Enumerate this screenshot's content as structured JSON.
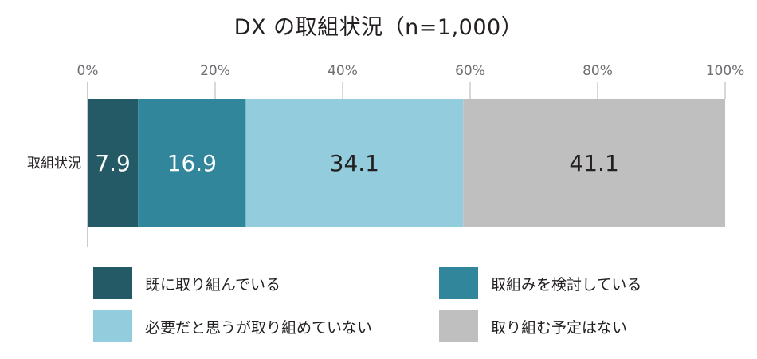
{
  "chart_data": {
    "type": "bar",
    "orientation": "horizontal",
    "stacked": true,
    "title": "DX の取組状況（n=1,000）",
    "categories": [
      "取組状況"
    ],
    "xlim": [
      0,
      100
    ],
    "x_ticks": [
      "0%",
      "20%",
      "40%",
      "60%",
      "80%",
      "100%"
    ],
    "grid": true,
    "legend_position": "bottom",
    "series": [
      {
        "name": "既に取り組んでいる",
        "values": [
          7.9
        ],
        "color": "#245a66",
        "label_color": "#ffffff"
      },
      {
        "name": "取組みを検討している",
        "values": [
          16.9
        ],
        "color": "#31869b",
        "label_color": "#ffffff"
      },
      {
        "name": "必要だと思うが取り組めていない",
        "values": [
          34.1
        ],
        "color": "#93cddd",
        "label_color": "#231f20"
      },
      {
        "name": "取り組む予定はない",
        "values": [
          41.1
        ],
        "color": "#bfbfbf",
        "label_color": "#231f20"
      }
    ]
  }
}
